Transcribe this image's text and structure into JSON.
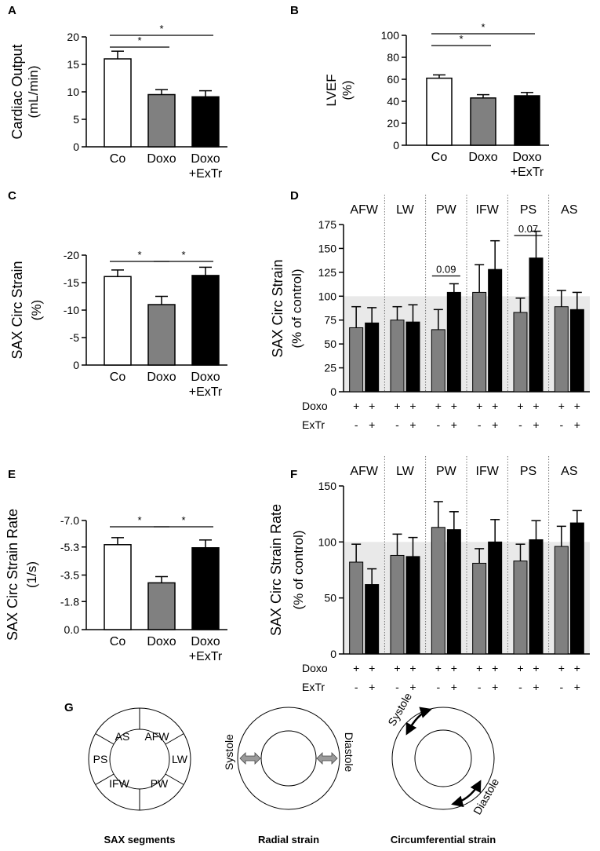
{
  "colors": {
    "co": "#ffffff",
    "doxo": "#808080",
    "exer": "#000000",
    "shade": "#e9e9e9",
    "axis": "#000000"
  },
  "chart_data": [
    {
      "panel": "A",
      "type": "bar",
      "ylabel": "Cardiac Output",
      "yunit": "(mL/min)",
      "ylim": [
        0,
        20
      ],
      "yticks": [
        0,
        5,
        10,
        15,
        20
      ],
      "ytick_labels": [
        "0",
        "5",
        "10",
        "15",
        "20"
      ],
      "categories": [
        "Co",
        "Doxo",
        "Doxo +ExTr"
      ],
      "cat_lines": [
        [
          "Co"
        ],
        [
          "Doxo"
        ],
        [
          "Doxo",
          "+ExTr"
        ]
      ],
      "values": [
        16.0,
        9.5,
        9.1
      ],
      "errors": [
        1.4,
        0.9,
        1.1
      ],
      "brackets": [
        {
          "from": 0,
          "to": 1,
          "label": "*"
        },
        {
          "from": 0,
          "to": 2,
          "label": "*"
        }
      ]
    },
    {
      "panel": "B",
      "type": "bar",
      "ylabel": "LVEF",
      "yunit": "(%)",
      "ylim": [
        0,
        100
      ],
      "yticks": [
        0,
        20,
        40,
        60,
        80,
        100
      ],
      "ytick_labels": [
        "0",
        "20",
        "40",
        "60",
        "80",
        "100"
      ],
      "categories": [
        "Co",
        "Doxo",
        "Doxo +ExTr"
      ],
      "cat_lines": [
        [
          "Co"
        ],
        [
          "Doxo"
        ],
        [
          "Doxo",
          "+ExTr"
        ]
      ],
      "values": [
        61,
        43,
        45
      ],
      "errors": [
        3,
        3,
        3
      ],
      "brackets": [
        {
          "from": 0,
          "to": 1,
          "label": "*"
        },
        {
          "from": 0,
          "to": 2,
          "label": "*"
        }
      ]
    },
    {
      "panel": "C",
      "type": "bar",
      "ylabel": "SAX Circ Strain",
      "yunit": "(%)",
      "ylim": [
        0,
        20
      ],
      "yticks": [
        0,
        5,
        10,
        15,
        20
      ],
      "ytick_labels": [
        "0",
        "-5",
        "-10",
        "-15",
        "-20"
      ],
      "categories": [
        "Co",
        "Doxo",
        "Doxo +ExTr"
      ],
      "cat_lines": [
        [
          "Co"
        ],
        [
          "Doxo"
        ],
        [
          "Doxo",
          "+ExTr"
        ]
      ],
      "values": [
        16.1,
        11.0,
        16.3
      ],
      "errors": [
        1.2,
        1.5,
        1.5
      ],
      "brackets": [
        {
          "from": 0,
          "to": 1,
          "label": "*"
        },
        {
          "from": 1,
          "to": 2,
          "label": "*"
        }
      ]
    },
    {
      "panel": "D",
      "type": "grouped_bar",
      "ylabel": "SAX Circ Strain",
      "yunit": "(% of control)",
      "ylim": [
        0,
        175
      ],
      "yticks": [
        0,
        25,
        50,
        75,
        100,
        125,
        150,
        175
      ],
      "ytick_labels": [
        "0",
        "25",
        "50",
        "75",
        "100",
        "125",
        "150",
        "175"
      ],
      "reference": 100,
      "segments": [
        "AFW",
        "LW",
        "PW",
        "IFW",
        "PS",
        "AS"
      ],
      "series": [
        {
          "name": "Doxo",
          "values": [
            67,
            75,
            65,
            104,
            83,
            89
          ],
          "errors": [
            22,
            14,
            21,
            29,
            15,
            17
          ]
        },
        {
          "name": "Doxo+ExTr",
          "values": [
            72,
            73,
            104,
            128,
            140,
            86
          ],
          "errors": [
            16,
            18,
            9,
            30,
            28,
            18
          ]
        }
      ],
      "annotations": [
        {
          "segment": 2,
          "label": "0.09"
        },
        {
          "segment": 4,
          "label": "0.07"
        }
      ],
      "rows": [
        {
          "label": "Doxo",
          "marks": [
            "+",
            "+",
            "+",
            "+",
            "+",
            "+",
            "+",
            "+",
            "+",
            "+",
            "+",
            "+"
          ]
        },
        {
          "label": "ExTr",
          "marks": [
            "-",
            "+",
            "-",
            "+",
            "-",
            "+",
            "-",
            "+",
            "-",
            "+",
            "-",
            "+"
          ]
        }
      ]
    },
    {
      "panel": "E",
      "type": "bar",
      "ylabel": "SAX Circ Strain Rate",
      "yunit": "(1/s)",
      "ylim": [
        0,
        7.0
      ],
      "yticks": [
        0,
        1.8,
        3.5,
        5.3,
        7.0
      ],
      "ytick_labels": [
        "0.0",
        "-1.8",
        "-3.5",
        "-5.3",
        "-7.0"
      ],
      "categories": [
        "Co",
        "Doxo",
        "Doxo +ExTr"
      ],
      "cat_lines": [
        [
          "Co"
        ],
        [
          "Doxo"
        ],
        [
          "Doxo",
          "+ExTr"
        ]
      ],
      "values": [
        5.45,
        3.0,
        5.25
      ],
      "errors": [
        0.45,
        0.4,
        0.5
      ],
      "brackets": [
        {
          "from": 0,
          "to": 1,
          "label": "*"
        },
        {
          "from": 1,
          "to": 2,
          "label": "*"
        }
      ]
    },
    {
      "panel": "F",
      "type": "grouped_bar",
      "ylabel": "SAX Circ Strain Rate",
      "yunit": "(% of control)",
      "ylim": [
        0,
        150
      ],
      "yticks": [
        0,
        50,
        100,
        150
      ],
      "ytick_labels": [
        "0",
        "50",
        "100",
        "150"
      ],
      "reference": 100,
      "segments": [
        "AFW",
        "LW",
        "PW",
        "IFW",
        "PS",
        "AS"
      ],
      "series": [
        {
          "name": "Doxo",
          "values": [
            82,
            88,
            113,
            81,
            83,
            96
          ],
          "errors": [
            16,
            19,
            23,
            13,
            15,
            18
          ]
        },
        {
          "name": "Doxo+ExTr",
          "values": [
            62,
            87,
            111,
            100,
            102,
            117
          ],
          "errors": [
            14,
            17,
            16,
            20,
            17,
            11
          ]
        }
      ],
      "annotations": [],
      "rows": [
        {
          "label": "Doxo",
          "marks": [
            "+",
            "+",
            "+",
            "+",
            "+",
            "+",
            "+",
            "+",
            "+",
            "+",
            "+",
            "+"
          ]
        },
        {
          "label": "ExTr",
          "marks": [
            "-",
            "+",
            "-",
            "+",
            "-",
            "+",
            "-",
            "+",
            "-",
            "+",
            "-",
            "+"
          ]
        }
      ]
    }
  ],
  "panel_g": {
    "label": "G",
    "sax": {
      "title": "SAX segments",
      "segments": [
        "AS",
        "AFW",
        "LW",
        "PW",
        "IFW",
        "PS"
      ]
    },
    "radial": {
      "title": "Radial strain",
      "left": "Systole",
      "right": "Diastole"
    },
    "circumferential": {
      "title": "Circumferential strain",
      "top": "Systole",
      "bottom": "Diastole"
    }
  }
}
